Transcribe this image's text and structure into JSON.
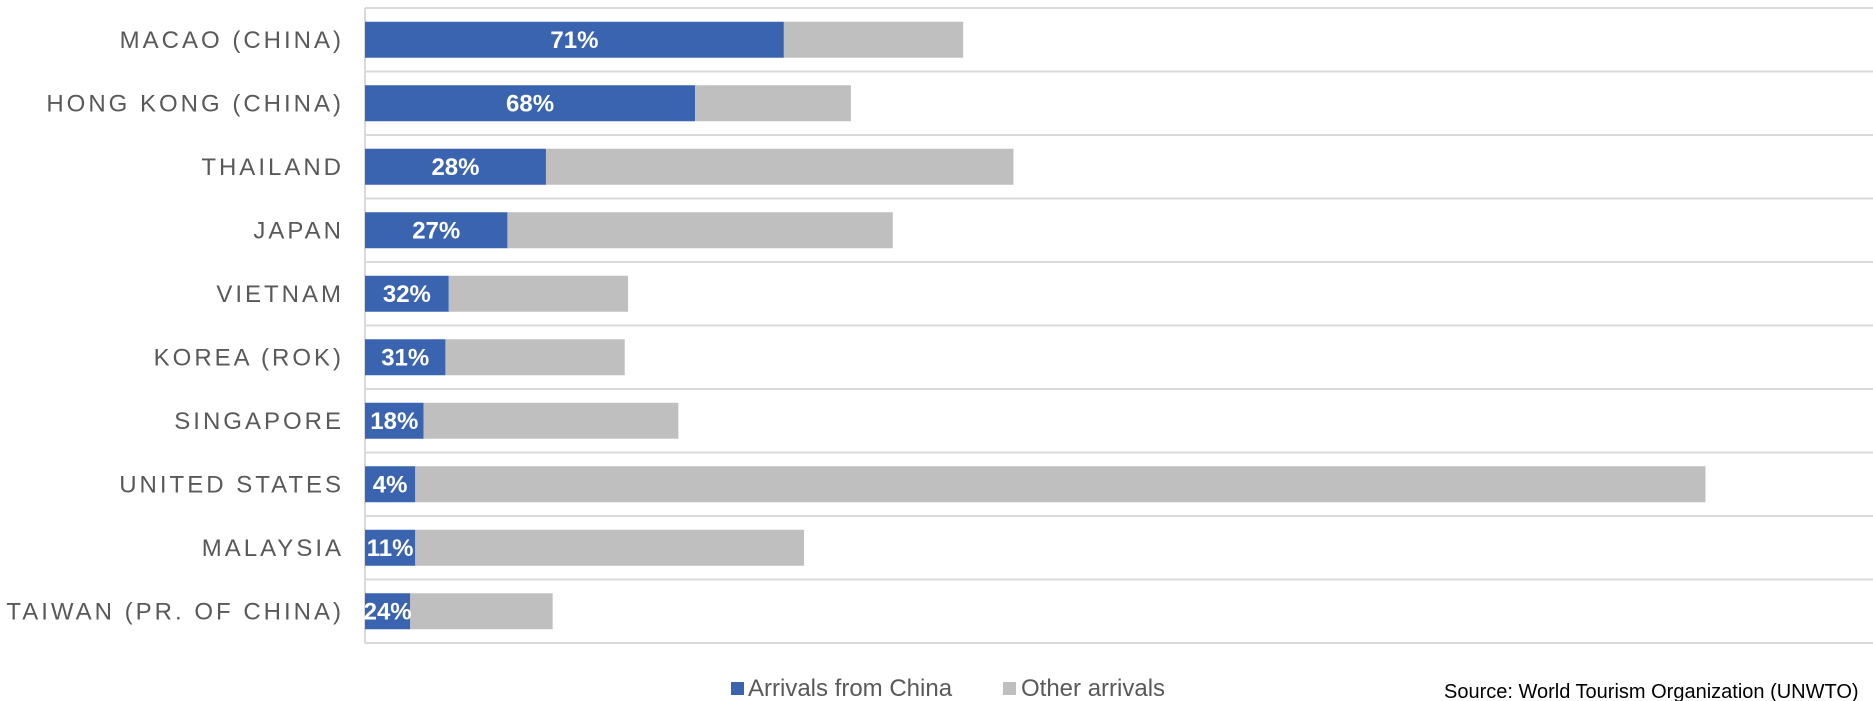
{
  "chart_data": {
    "type": "bar",
    "orientation": "horizontal",
    "stacked": true,
    "categories": [
      "MACAO (CHINA)",
      "HONG KONG (CHINA)",
      "THAILAND",
      "JAPAN",
      "VIETNAM",
      "KOREA (ROK)",
      "SINGAPORE",
      "UNITED STATES",
      "MALAYSIA",
      "TAIWAN (PR. OF CHINA)"
    ],
    "series": [
      {
        "name": "Arrivals from China",
        "color": "#3A64B0",
        "values": [
          25.0,
          19.7,
          10.8,
          8.5,
          5.0,
          4.8,
          3.5,
          3.0,
          3.0,
          2.7
        ]
      },
      {
        "name": "Other arrivals",
        "color": "#BFBFBF",
        "values": [
          10.7,
          9.3,
          27.9,
          23.0,
          10.7,
          10.7,
          15.2,
          77.0,
          23.2,
          8.5
        ]
      }
    ],
    "data_labels": [
      "71%",
      "68%",
      "28%",
      "27%",
      "32%",
      "31%",
      "18%",
      "4%",
      "11%",
      "24%"
    ],
    "xlim": [
      0,
      90
    ],
    "legend_position": "bottom-center",
    "grid": "horizontal separators"
  },
  "source_note": "Source: World Tourism Organization (UNWTO)"
}
